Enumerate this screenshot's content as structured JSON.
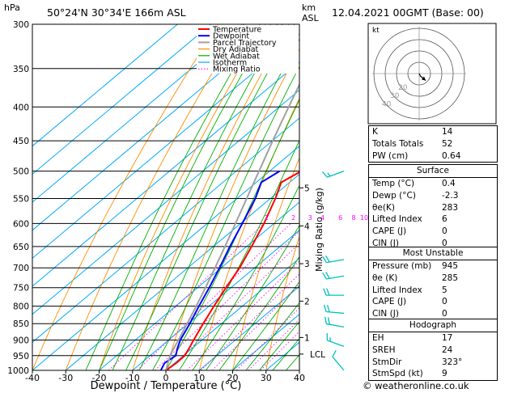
{
  "header": {
    "hpa_unit": "hPa",
    "location": "50°24'N  30°34'E  166m  ASL",
    "km_unit": "km",
    "asl_unit": "ASL",
    "datetime": "12.04.2021  00GMT  (Base: 00)"
  },
  "colors": {
    "temperature": "#ff0000",
    "dewpoint": "#0000ff",
    "parcel": "#a0a0a0",
    "dry_adiabat": "#ff8c00",
    "wet_adiabat": "#00b000",
    "isotherm": "#00aaff",
    "mixing_ratio": "#ff00ff"
  },
  "chart_data": {
    "type": "skew-t",
    "xlabel": "Dewpoint / Temperature (°C)",
    "ylabel_right": "Mixing Ratio (g/kg)",
    "x_ticks": [
      -40,
      -30,
      -20,
      -10,
      0,
      10,
      20,
      30,
      40
    ],
    "pressure_ticks": [
      300,
      350,
      400,
      450,
      500,
      550,
      600,
      650,
      700,
      750,
      800,
      850,
      900,
      950,
      1000
    ],
    "plim": [
      300,
      1000
    ],
    "xlim": [
      -40,
      40
    ],
    "km_ticks": [
      {
        "label": "1",
        "p": 892
      },
      {
        "label": "2",
        "p": 786
      },
      {
        "label": "3",
        "p": 690
      },
      {
        "label": "4",
        "p": 605
      },
      {
        "label": "5",
        "p": 530
      }
    ],
    "lcl": {
      "label": "LCL",
      "p": 945
    },
    "mixing_ratio_labels": [
      "1",
      "2",
      "3",
      "4",
      "6",
      "8",
      "10",
      "16",
      "20",
      "25"
    ],
    "mixing_ratio_values": [
      1,
      2,
      3,
      4,
      6,
      8,
      10,
      16,
      20,
      25
    ],
    "legend": [
      "Temperature",
      "Dewpoint",
      "Parcel Trajectory",
      "Dry Adiabat",
      "Wet Adiabat",
      "Isotherm",
      "Mixing Ratio"
    ],
    "series": [
      {
        "name": "Temperature",
        "p": [
          1000,
          975,
          950,
          925,
          900,
          850,
          800,
          750,
          700,
          650,
          600,
          550,
          520,
          500
        ],
        "t": [
          0.0,
          0.5,
          0.4,
          -1.0,
          -2.5,
          -5.5,
          -8.5,
          -11.5,
          -14.5,
          -18.5,
          -23.0,
          -28.5,
          -32.5,
          -30.5
        ]
      },
      {
        "name": "Dewpoint",
        "p": [
          1000,
          975,
          950,
          925,
          900,
          850,
          800,
          750,
          700,
          650,
          600,
          550,
          520,
          500
        ],
        "t": [
          -1.5,
          -3.0,
          -2.3,
          -4.5,
          -6.5,
          -9.5,
          -13.0,
          -16.5,
          -20.5,
          -25.0,
          -29.5,
          -34.5,
          -38.5,
          -37.0
        ]
      }
    ]
  },
  "hodograph": {
    "kt_label": "kt",
    "ring_labels": [
      "20",
      "30",
      "40"
    ],
    "points": [
      [
        0,
        0
      ],
      [
        1.5,
        -3.0
      ],
      [
        5.0,
        -6.0
      ],
      [
        8.0,
        -8.5
      ]
    ]
  },
  "indices": [
    {
      "label": "K",
      "value": "14"
    },
    {
      "label": "Totals Totals",
      "value": "52"
    },
    {
      "label": "PW (cm)",
      "value": "0.64"
    }
  ],
  "surface": {
    "title": "Surface",
    "rows": [
      {
        "label": "Temp (°C)",
        "value": "0.4"
      },
      {
        "label": "Dewp (°C)",
        "value": "-2.3"
      },
      {
        "label": "θe(K)",
        "value": "283"
      },
      {
        "label": "Lifted Index",
        "value": "6"
      },
      {
        "label": "CAPE (J)",
        "value": "0"
      },
      {
        "label": "CIN (J)",
        "value": "0"
      }
    ]
  },
  "most_unstable": {
    "title": "Most Unstable",
    "rows": [
      {
        "label": "Pressure (mb)",
        "value": "945"
      },
      {
        "label": "θe (K)",
        "value": "285"
      },
      {
        "label": "Lifted Index",
        "value": "5"
      },
      {
        "label": "CAPE (J)",
        "value": "0"
      },
      {
        "label": "CIN (J)",
        "value": "0"
      }
    ]
  },
  "hodograph_table": {
    "title": "Hodograph",
    "rows": [
      {
        "label": "EH",
        "value": "17"
      },
      {
        "label": "SREH",
        "value": "24"
      },
      {
        "label": "StmDir",
        "value": "323°"
      },
      {
        "label": "StmSpd (kt)",
        "value": "9"
      }
    ]
  },
  "footer": {
    "copyright": "© weatheronline.co.uk"
  },
  "wind_barbs": [
    {
      "p": 500,
      "dir": 250,
      "spd": 15
    },
    {
      "p": 680,
      "dir": 260,
      "spd": 20
    },
    {
      "p": 720,
      "dir": 260,
      "spd": 20
    },
    {
      "p": 770,
      "dir": 270,
      "spd": 20
    },
    {
      "p": 820,
      "dir": 275,
      "spd": 20
    },
    {
      "p": 860,
      "dir": 280,
      "spd": 20
    },
    {
      "p": 920,
      "dir": 290,
      "spd": 15
    },
    {
      "p": 1000,
      "dir": 320,
      "spd": 10
    }
  ]
}
